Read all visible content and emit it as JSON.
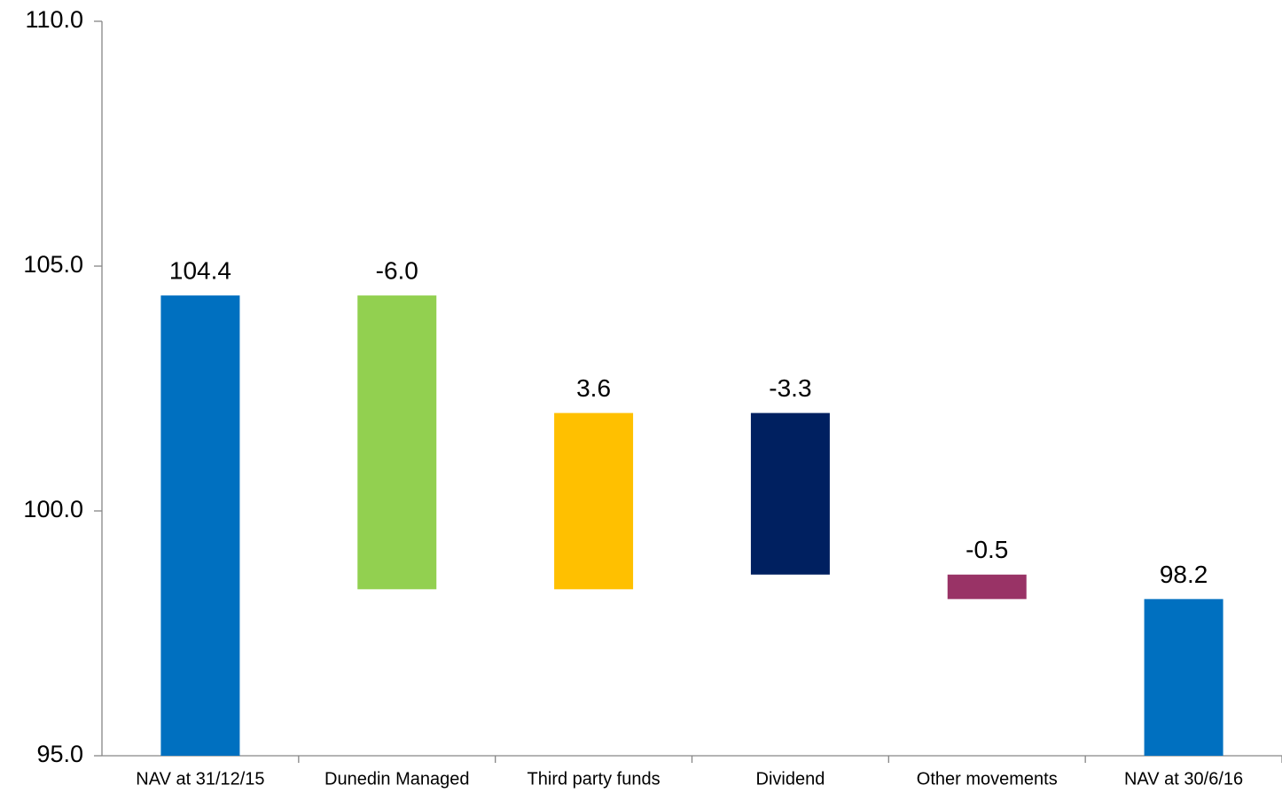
{
  "chart_data": {
    "type": "waterfall",
    "categories": [
      "NAV at 31/12/15",
      "Dunedin Managed",
      "Third party funds",
      "Dividend",
      "Other movements",
      "NAV at 30/6/16"
    ],
    "values": [
      104.4,
      -6.0,
      3.6,
      -3.3,
      -0.5,
      98.2
    ],
    "value_labels": [
      "104.4",
      "-6.0",
      "3.6",
      "-3.3",
      "-0.5",
      "98.2"
    ],
    "totals": [
      true,
      false,
      false,
      false,
      false,
      true
    ],
    "colors": [
      "#0070c0",
      "#92d050",
      "#ffc000",
      "#002060",
      "#993366",
      "#0070c0"
    ],
    "ylim": [
      95,
      110
    ],
    "yticks": [
      {
        "value": 95,
        "label": "95.0"
      },
      {
        "value": 100,
        "label": "100.0"
      },
      {
        "value": 105,
        "label": "105.0"
      },
      {
        "value": 110,
        "label": "110.0"
      }
    ],
    "grid": false
  }
}
